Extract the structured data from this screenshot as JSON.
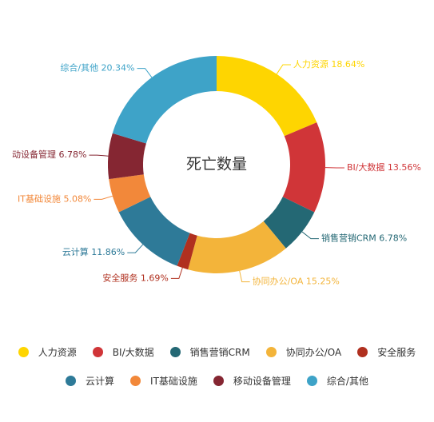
{
  "chart_data": {
    "type": "pie",
    "variant": "donut",
    "title": "死亡数量",
    "legend_position": "bottom",
    "slices": [
      {
        "name": "人力资源",
        "value": 18.64,
        "label": "人力资源 18.64%",
        "color": "#FED501"
      },
      {
        "name": "BI/大数据",
        "value": 13.56,
        "label": "BI/大数据 13.56%",
        "color": "#D03538"
      },
      {
        "name": "销售营销CRM",
        "value": 6.78,
        "label": "销售营销CRM 6.78%",
        "color": "#246874"
      },
      {
        "name": "协同办公/OA",
        "value": 15.25,
        "label": "协同办公/OA 15.25%",
        "color": "#F3B43A"
      },
      {
        "name": "安全服务",
        "value": 1.69,
        "label": "安全服务 1.69%",
        "color": "#B0301F"
      },
      {
        "name": "云计算",
        "value": 11.86,
        "label": "云计算 11.86%",
        "color": "#2E7A98"
      },
      {
        "name": "IT基础设施",
        "value": 5.08,
        "label": "IT基础设施 5.08%",
        "color": "#F2883A"
      },
      {
        "name": "移动设备管理",
        "value": 6.78,
        "label": "动设备管理 6.78%",
        "color": "#852632"
      },
      {
        "name": "综合/其他",
        "value": 20.34,
        "label": "综合/其他 20.34%",
        "color": "#3EA3C8"
      }
    ]
  }
}
